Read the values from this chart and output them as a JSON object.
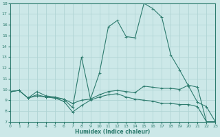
{
  "xlabel": "Humidex (Indice chaleur)",
  "xlim": [
    0,
    23
  ],
  "ylim": [
    7,
    18
  ],
  "xticks": [
    0,
    1,
    2,
    3,
    4,
    5,
    6,
    7,
    8,
    9,
    10,
    11,
    12,
    13,
    14,
    15,
    16,
    17,
    18,
    19,
    20,
    21,
    22,
    23
  ],
  "yticks": [
    7,
    8,
    9,
    10,
    11,
    12,
    13,
    14,
    15,
    16,
    17,
    18
  ],
  "bg_color": "#cce8e8",
  "line_color": "#2d7b6e",
  "grid_color": "#b0d4d4",
  "curve_main_x": [
    0,
    1,
    2,
    3,
    4,
    5,
    6,
    7,
    8,
    9,
    10,
    11,
    12,
    13,
    14,
    15,
    16,
    17,
    18,
    19,
    20,
    21,
    22,
    23
  ],
  "curve_main_y": [
    9.8,
    9.9,
    9.2,
    9.8,
    9.4,
    9.3,
    9.1,
    8.3,
    13.0,
    9.1,
    11.5,
    15.8,
    16.4,
    14.9,
    14.8,
    18.0,
    17.5,
    16.7,
    13.2,
    11.8,
    10.3,
    8.8,
    8.4,
    7.0
  ],
  "curve_mid_x": [
    0,
    1,
    2,
    3,
    4,
    5,
    6,
    7,
    8,
    9,
    10,
    11,
    12,
    13,
    14,
    15,
    16,
    17,
    18,
    19,
    20,
    21,
    22,
    23
  ],
  "curve_mid_y": [
    9.8,
    9.9,
    9.2,
    9.5,
    9.3,
    9.2,
    9.1,
    8.7,
    9.0,
    9.1,
    9.5,
    9.8,
    9.9,
    9.8,
    9.7,
    10.3,
    10.2,
    10.1,
    10.1,
    10.0,
    10.4,
    10.2,
    7.0,
    7.0
  ],
  "curve_low_x": [
    0,
    1,
    2,
    3,
    4,
    5,
    6,
    7,
    8,
    9,
    10,
    11,
    12,
    13,
    14,
    15,
    16,
    17,
    18,
    19,
    20,
    21,
    22,
    23
  ],
  "curve_low_y": [
    9.8,
    9.9,
    9.2,
    9.4,
    9.3,
    9.2,
    8.9,
    7.9,
    8.5,
    9.0,
    9.3,
    9.5,
    9.6,
    9.3,
    9.1,
    9.0,
    8.9,
    8.7,
    8.7,
    8.6,
    8.6,
    8.4,
    7.0,
    7.0
  ]
}
